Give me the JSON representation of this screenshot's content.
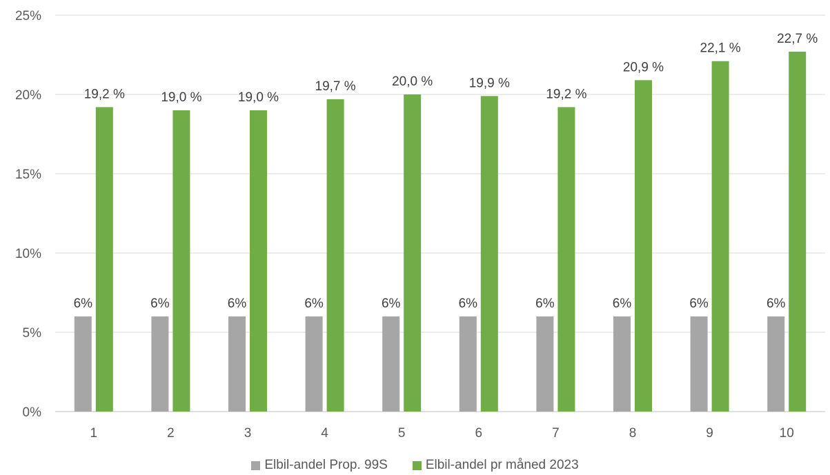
{
  "chart_data": {
    "type": "bar",
    "title": "",
    "xlabel": "",
    "ylabel": "",
    "categories": [
      "1",
      "2",
      "3",
      "4",
      "5",
      "6",
      "7",
      "8",
      "9",
      "10"
    ],
    "series": [
      {
        "name": "Elbil-andel Prop. 99S",
        "color": "#a6a6a6",
        "values": [
          6,
          6,
          6,
          6,
          6,
          6,
          6,
          6,
          6,
          6
        ],
        "labels": [
          "6%",
          "6%",
          "6%",
          "6%",
          "6%",
          "6%",
          "6%",
          "6%",
          "6%",
          "6%"
        ]
      },
      {
        "name": "Elbil-andel pr måned 2023",
        "color": "#70ad47",
        "values": [
          19.2,
          19.0,
          19.0,
          19.7,
          20.0,
          19.9,
          19.2,
          20.9,
          22.1,
          22.7
        ],
        "labels": [
          "19,2 %",
          "19,0 %",
          "19,0 %",
          "19,7 %",
          "20,0 %",
          "19,9 %",
          "19,2 %",
          "20,9 %",
          "22,1 %",
          "22,7 %"
        ]
      }
    ],
    "ylim": [
      0,
      25
    ],
    "yticks": [
      "0%",
      "5%",
      "10%",
      "15%",
      "20%",
      "25%"
    ],
    "grid": true,
    "legend_position": "bottom"
  }
}
